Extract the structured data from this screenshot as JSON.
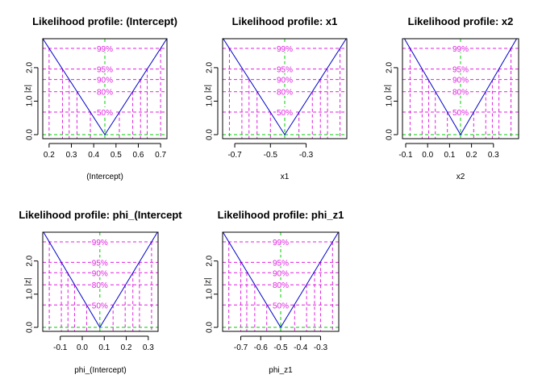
{
  "chart_data": [
    {
      "type": "line",
      "title": "Likelihood profile: (Intercept)",
      "xlabel": "(Intercept)",
      "ylabel": "|z|",
      "xlim": [
        0.186,
        0.714
      ],
      "ylim": [
        0,
        2.576
      ],
      "xticks": [
        0.2,
        0.3,
        0.4,
        0.5,
        0.6,
        0.7
      ],
      "xtick_labels": [
        "0.2",
        "0.3",
        "0.4",
        "0.5",
        "0.6",
        "0.7"
      ],
      "yticks": [
        0,
        1,
        2
      ],
      "ytick_labels": [
        "0.0",
        "1.0",
        "2.0"
      ],
      "estimate": 0.45,
      "profile": {
        "x": [
          0.2,
          0.45,
          0.7
        ],
        "y": [
          2.576,
          0,
          2.576
        ]
      },
      "levels": [
        {
          "label": "50%",
          "z": 0.674,
          "lower": 0.385,
          "upper": 0.515
        },
        {
          "label": "80%",
          "z": 1.282,
          "lower": 0.325,
          "upper": 0.575
        },
        {
          "label": "90%",
          "z": 1.645,
          "lower": 0.29,
          "upper": 0.61
        },
        {
          "label": "95%",
          "z": 1.96,
          "lower": 0.26,
          "upper": 0.64
        },
        {
          "label": "99%",
          "z": 2.576,
          "lower": 0.2,
          "upper": 0.7
        }
      ]
    },
    {
      "type": "line",
      "title": "Likelihood profile: x1",
      "xlabel": "x1",
      "ylabel": "|z|",
      "xlim": [
        -0.75,
        -0.09
      ],
      "ylim": [
        0,
        2.576
      ],
      "xticks": [
        -0.7,
        -0.5,
        -0.3
      ],
      "xtick_labels": [
        "-0.7",
        "-0.5",
        "-0.3"
      ],
      "yticks": [
        0,
        1,
        2
      ],
      "ytick_labels": [
        "0.0",
        "1.0",
        "2.0"
      ],
      "estimate": -0.42,
      "profile": {
        "x": [
          -0.73,
          -0.42,
          -0.11
        ],
        "y": [
          2.576,
          0,
          2.576
        ]
      },
      "levels": [
        {
          "label": "50%",
          "z": 0.674,
          "lower": -0.5,
          "upper": -0.34
        },
        {
          "label": "80%",
          "z": 1.282,
          "lower": -0.575,
          "upper": -0.265
        },
        {
          "label": "90%",
          "z": 1.645,
          "lower": -0.62,
          "upper": -0.22
        },
        {
          "label": "95%",
          "z": 1.96,
          "lower": -0.66,
          "upper": -0.18
        },
        {
          "label": "99%",
          "z": 2.576,
          "lower": -0.73,
          "upper": -0.11
        }
      ]
    },
    {
      "type": "line",
      "title": "Likelihood profile: x2",
      "xlabel": "x2",
      "ylabel": "|z|",
      "xlim": [
        -0.1,
        0.4
      ],
      "ylim": [
        0,
        2.576
      ],
      "xticks": [
        -0.1,
        0.0,
        0.1,
        0.2,
        0.3
      ],
      "xtick_labels": [
        "-0.1",
        "0.0",
        "0.1",
        "0.2",
        "0.3"
      ],
      "yticks": [
        0,
        1,
        2
      ],
      "ytick_labels": [
        "0.0",
        "1.0",
        "2.0"
      ],
      "estimate": 0.15,
      "profile": {
        "x": [
          -0.08,
          0.15,
          0.38
        ],
        "y": [
          2.576,
          0,
          2.576
        ]
      },
      "levels": [
        {
          "label": "50%",
          "z": 0.674,
          "lower": 0.09,
          "upper": 0.21
        },
        {
          "label": "80%",
          "z": 1.282,
          "lower": 0.035,
          "upper": 0.265
        },
        {
          "label": "90%",
          "z": 1.645,
          "lower": 0.005,
          "upper": 0.295
        },
        {
          "label": "95%",
          "z": 1.96,
          "lower": -0.025,
          "upper": 0.325
        },
        {
          "label": "99%",
          "z": 2.576,
          "lower": -0.08,
          "upper": 0.38
        }
      ]
    },
    {
      "type": "line",
      "title": "Likelihood profile: phi_(Intercept",
      "xlabel": "phi_(Intercept)",
      "ylabel": "|z|",
      "xlim": [
        -0.165,
        0.33
      ],
      "ylim": [
        0,
        2.576
      ],
      "xticks": [
        -0.1,
        0.0,
        0.1,
        0.2,
        0.3
      ],
      "xtick_labels": [
        "-0.1",
        "0.0",
        "0.1",
        "0.2",
        "0.3"
      ],
      "yticks": [
        0,
        1,
        2
      ],
      "ytick_labels": [
        "0.0",
        "1.0",
        "2.0"
      ],
      "estimate": 0.08,
      "profile": {
        "x": [
          -0.15,
          0.08,
          0.315
        ],
        "y": [
          2.576,
          0,
          2.576
        ]
      },
      "levels": [
        {
          "label": "50%",
          "z": 0.674,
          "lower": 0.02,
          "upper": 0.14
        },
        {
          "label": "80%",
          "z": 1.282,
          "lower": -0.035,
          "upper": 0.195
        },
        {
          "label": "90%",
          "z": 1.645,
          "lower": -0.065,
          "upper": 0.23
        },
        {
          "label": "95%",
          "z": 1.96,
          "lower": -0.095,
          "upper": 0.26
        },
        {
          "label": "99%",
          "z": 2.576,
          "lower": -0.15,
          "upper": 0.315
        }
      ]
    },
    {
      "type": "line",
      "title": "Likelihood profile: phi_z1",
      "xlabel": "phi_z1",
      "ylabel": "|z|",
      "xlim": [
        -0.775,
        -0.225
      ],
      "ylim": [
        0,
        2.576
      ],
      "xticks": [
        -0.7,
        -0.6,
        -0.5,
        -0.4,
        -0.3
      ],
      "xtick_labels": [
        "-0.7",
        "-0.6",
        "-0.5",
        "-0.4",
        "-0.3"
      ],
      "yticks": [
        0,
        1,
        2
      ],
      "ytick_labels": [
        "0.0",
        "1.0",
        "2.0"
      ],
      "estimate": -0.5,
      "profile": {
        "x": [
          -0.76,
          -0.5,
          -0.24
        ],
        "y": [
          2.576,
          0,
          2.576
        ]
      },
      "levels": [
        {
          "label": "50%",
          "z": 0.674,
          "lower": -0.57,
          "upper": -0.43
        },
        {
          "label": "80%",
          "z": 1.282,
          "lower": -0.63,
          "upper": -0.37
        },
        {
          "label": "90%",
          "z": 1.645,
          "lower": -0.67,
          "upper": -0.33
        },
        {
          "label": "95%",
          "z": 1.96,
          "lower": -0.7,
          "upper": -0.3
        },
        {
          "label": "99%",
          "z": 2.576,
          "lower": -0.76,
          "upper": -0.24
        }
      ]
    }
  ],
  "colors": {
    "profile": "#0000cc",
    "level": "#e020e0",
    "estimate": "#00cc00",
    "axis": "#000000"
  }
}
